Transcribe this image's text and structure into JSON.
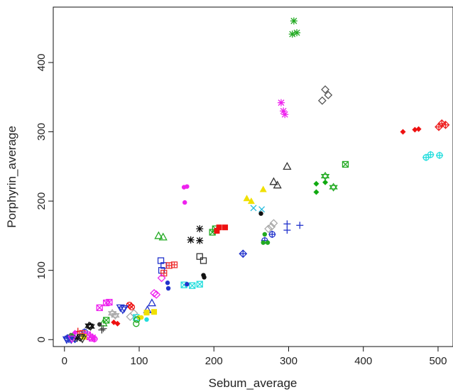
{
  "chart_data": {
    "type": "scatter",
    "title": "",
    "xlabel": "Sebum_average",
    "ylabel": "Porphyrin_average",
    "xlim": [
      -15,
      520
    ],
    "ylim": [
      -10,
      480
    ],
    "xticks": [
      0,
      100,
      200,
      300,
      400,
      500
    ],
    "yticks": [
      0,
      100,
      200,
      300,
      400
    ],
    "xtick_labels": [
      "0",
      "100",
      "200",
      "300",
      "400",
      "500"
    ],
    "ytick_labels": [
      "0",
      "100",
      "200",
      "300",
      "400"
    ],
    "grid": false,
    "legend": "none",
    "points": [
      {
        "x": 307,
        "y": 460,
        "color": "#22aa22",
        "marker": "asterisk"
      },
      {
        "x": 305,
        "y": 441,
        "color": "#22aa22",
        "marker": "asterisk"
      },
      {
        "x": 311,
        "y": 443,
        "color": "#22aa22",
        "marker": "asterisk"
      },
      {
        "x": 290,
        "y": 342,
        "color": "#ee22ee",
        "marker": "asterisk"
      },
      {
        "x": 293,
        "y": 330,
        "color": "#ee22ee",
        "marker": "asterisk"
      },
      {
        "x": 295,
        "y": 325,
        "color": "#ee22ee",
        "marker": "asterisk"
      },
      {
        "x": 349,
        "y": 361,
        "color": "#555555",
        "marker": "diamond-open"
      },
      {
        "x": 353,
        "y": 353,
        "color": "#555555",
        "marker": "diamond-open"
      },
      {
        "x": 345,
        "y": 345,
        "color": "#555555",
        "marker": "diamond-open"
      },
      {
        "x": 453,
        "y": 300,
        "color": "#ee1111",
        "marker": "diamond-filled"
      },
      {
        "x": 469,
        "y": 303,
        "color": "#ee1111",
        "marker": "diamond-filled"
      },
      {
        "x": 474,
        "y": 304,
        "color": "#ee1111",
        "marker": "diamond-filled"
      },
      {
        "x": 501,
        "y": 307,
        "color": "#ee2222",
        "marker": "diamond-plus"
      },
      {
        "x": 505,
        "y": 312,
        "color": "#ee2222",
        "marker": "diamond-plus"
      },
      {
        "x": 510,
        "y": 310,
        "color": "#ee2222",
        "marker": "diamond-plus"
      },
      {
        "x": 484,
        "y": 263,
        "color": "#22dddd",
        "marker": "circle-plus"
      },
      {
        "x": 490,
        "y": 267,
        "color": "#22dddd",
        "marker": "circle-plus"
      },
      {
        "x": 502,
        "y": 266,
        "color": "#22dddd",
        "marker": "circle-plus"
      },
      {
        "x": 298,
        "y": 250,
        "color": "#333333",
        "marker": "triangle-open"
      },
      {
        "x": 280,
        "y": 228,
        "color": "#333333",
        "marker": "triangle-open"
      },
      {
        "x": 285,
        "y": 223,
        "color": "#333333",
        "marker": "triangle-open"
      },
      {
        "x": 349,
        "y": 236,
        "color": "#22aa22",
        "marker": "star-david"
      },
      {
        "x": 360,
        "y": 220,
        "color": "#22aa22",
        "marker": "star-david"
      },
      {
        "x": 376,
        "y": 253,
        "color": "#22aa22",
        "marker": "square-x"
      },
      {
        "x": 337,
        "y": 225,
        "color": "#11aa11",
        "marker": "diamond-filled"
      },
      {
        "x": 337,
        "y": 213,
        "color": "#11aa11",
        "marker": "diamond-filled"
      },
      {
        "x": 349,
        "y": 227,
        "color": "#11aa11",
        "marker": "diamond-filled"
      },
      {
        "x": 160,
        "y": 220,
        "color": "#ee22ee",
        "marker": "circle-filled"
      },
      {
        "x": 164,
        "y": 221,
        "color": "#ee22ee",
        "marker": "circle-filled"
      },
      {
        "x": 161,
        "y": 198,
        "color": "#ee22ee",
        "marker": "circle-filled"
      },
      {
        "x": 244,
        "y": 204,
        "color": "#f0e000",
        "marker": "triangle-filled"
      },
      {
        "x": 250,
        "y": 200,
        "color": "#f0e000",
        "marker": "triangle-filled"
      },
      {
        "x": 266,
        "y": 217,
        "color": "#f0e000",
        "marker": "triangle-filled"
      },
      {
        "x": 253,
        "y": 190,
        "color": "#22bbdd",
        "marker": "x"
      },
      {
        "x": 264,
        "y": 188,
        "color": "#22bbdd",
        "marker": "x"
      },
      {
        "x": 263,
        "y": 182,
        "color": "#111111",
        "marker": "circle-filled"
      },
      {
        "x": 298,
        "y": 167,
        "color": "#2233cc",
        "marker": "plus"
      },
      {
        "x": 298,
        "y": 158,
        "color": "#2233cc",
        "marker": "plus"
      },
      {
        "x": 315,
        "y": 165,
        "color": "#2233cc",
        "marker": "plus"
      },
      {
        "x": 277,
        "y": 163,
        "color": "#aaaaaa",
        "marker": "diamond-open"
      },
      {
        "x": 280,
        "y": 168,
        "color": "#aaaaaa",
        "marker": "diamond-open"
      },
      {
        "x": 273,
        "y": 160,
        "color": "#aaaaaa",
        "marker": "diamond-open"
      },
      {
        "x": 278,
        "y": 152,
        "color": "#2233cc",
        "marker": "circle-plus"
      },
      {
        "x": 268,
        "y": 143,
        "color": "#2233cc",
        "marker": "circle-plus"
      },
      {
        "x": 239,
        "y": 124,
        "color": "#2233cc",
        "marker": "diamond-plus"
      },
      {
        "x": 268,
        "y": 152,
        "color": "#22aa22",
        "marker": "circle-filled"
      },
      {
        "x": 266,
        "y": 140,
        "color": "#22aa22",
        "marker": "circle-filled"
      },
      {
        "x": 272,
        "y": 140,
        "color": "#22aa22",
        "marker": "circle-filled"
      },
      {
        "x": 181,
        "y": 160,
        "color": "#111111",
        "marker": "asterisk"
      },
      {
        "x": 169,
        "y": 144,
        "color": "#111111",
        "marker": "asterisk"
      },
      {
        "x": 181,
        "y": 143,
        "color": "#111111",
        "marker": "asterisk"
      },
      {
        "x": 198,
        "y": 155,
        "color": "#22aa22",
        "marker": "square-x"
      },
      {
        "x": 202,
        "y": 160,
        "color": "#22aa22",
        "marker": "square-x"
      },
      {
        "x": 207,
        "y": 162,
        "color": "#ee1111",
        "marker": "square-filled"
      },
      {
        "x": 215,
        "y": 162,
        "color": "#ee1111",
        "marker": "square-filled"
      },
      {
        "x": 204,
        "y": 157,
        "color": "#ee1111",
        "marker": "square-filled"
      },
      {
        "x": 126,
        "y": 150,
        "color": "#22aa22",
        "marker": "triangle-open"
      },
      {
        "x": 132,
        "y": 148,
        "color": "#22aa22",
        "marker": "triangle-open"
      },
      {
        "x": 181,
        "y": 120,
        "color": "#333333",
        "marker": "square-open"
      },
      {
        "x": 186,
        "y": 114,
        "color": "#333333",
        "marker": "square-open"
      },
      {
        "x": 186,
        "y": 93,
        "color": "#111111",
        "marker": "circle-filled"
      },
      {
        "x": 187,
        "y": 90,
        "color": "#111111",
        "marker": "circle-filled"
      },
      {
        "x": 129,
        "y": 114,
        "color": "#2233cc",
        "marker": "square-open"
      },
      {
        "x": 133,
        "y": 107,
        "color": "#2233cc",
        "marker": "square-open"
      },
      {
        "x": 130,
        "y": 100,
        "color": "#2233cc",
        "marker": "square-open"
      },
      {
        "x": 140,
        "y": 107,
        "color": "#ee3333",
        "marker": "square-grid"
      },
      {
        "x": 147,
        "y": 108,
        "color": "#ee3333",
        "marker": "square-grid"
      },
      {
        "x": 133,
        "y": 96,
        "color": "#ee3333",
        "marker": "square-grid"
      },
      {
        "x": 130,
        "y": 89,
        "color": "#ee22ee",
        "marker": "diamond-open"
      },
      {
        "x": 138,
        "y": 82,
        "color": "#2233cc",
        "marker": "circle-filled"
      },
      {
        "x": 139,
        "y": 74,
        "color": "#2233cc",
        "marker": "circle-filled"
      },
      {
        "x": 160,
        "y": 79,
        "color": "#22dddd",
        "marker": "square-x"
      },
      {
        "x": 171,
        "y": 78,
        "color": "#22dddd",
        "marker": "square-x"
      },
      {
        "x": 181,
        "y": 80,
        "color": "#22dddd",
        "marker": "square-x"
      },
      {
        "x": 164,
        "y": 80,
        "color": "#2233cc",
        "marker": "circle-filled"
      },
      {
        "x": 120,
        "y": 67,
        "color": "#ee22ee",
        "marker": "diamond-open"
      },
      {
        "x": 123,
        "y": 65,
        "color": "#ee22ee",
        "marker": "diamond-open"
      },
      {
        "x": 117,
        "y": 53,
        "color": "#2233cc",
        "marker": "triangle-open"
      },
      {
        "x": 111,
        "y": 43,
        "color": "#2233cc",
        "marker": "triangle-open"
      },
      {
        "x": 120,
        "y": 40,
        "color": "#f0e000",
        "marker": "square-filled"
      },
      {
        "x": 110,
        "y": 39,
        "color": "#f0e000",
        "marker": "square-filled"
      },
      {
        "x": 60,
        "y": 54,
        "color": "#ee22ee",
        "marker": "square-x"
      },
      {
        "x": 56,
        "y": 53,
        "color": "#ee22ee",
        "marker": "square-x"
      },
      {
        "x": 47,
        "y": 46,
        "color": "#ee22ee",
        "marker": "square-x"
      },
      {
        "x": 87,
        "y": 50,
        "color": "#ee1111",
        "marker": "circle-x"
      },
      {
        "x": 90,
        "y": 47,
        "color": "#ee1111",
        "marker": "circle-x"
      },
      {
        "x": 75,
        "y": 46,
        "color": "#2233cc",
        "marker": "triangle-down"
      },
      {
        "x": 80,
        "y": 45,
        "color": "#2233cc",
        "marker": "triangle-down"
      },
      {
        "x": 78,
        "y": 43,
        "color": "#2233cc",
        "marker": "triangle-down"
      },
      {
        "x": 93,
        "y": 38,
        "color": "#aaaaaa",
        "marker": "diamond-open"
      },
      {
        "x": 88,
        "y": 33,
        "color": "#aaaaaa",
        "marker": "diamond-open"
      },
      {
        "x": 96,
        "y": 32,
        "color": "#22dddd",
        "marker": "square-x"
      },
      {
        "x": 103,
        "y": 32,
        "color": "#f0e000",
        "marker": "circle-filled"
      },
      {
        "x": 100,
        "y": 32,
        "color": "#f0e000",
        "marker": "circle-filled"
      },
      {
        "x": 110,
        "y": 29,
        "color": "#22dddd",
        "marker": "circle-filled"
      },
      {
        "x": 64,
        "y": 38,
        "color": "#aaaaaa",
        "marker": "star-david"
      },
      {
        "x": 68,
        "y": 35,
        "color": "#aaaaaa",
        "marker": "star-david"
      },
      {
        "x": 56,
        "y": 28,
        "color": "#22aa22",
        "marker": "square-x"
      },
      {
        "x": 66,
        "y": 25,
        "color": "#ee1111",
        "marker": "diamond-filled"
      },
      {
        "x": 71,
        "y": 23,
        "color": "#ee1111",
        "marker": "diamond-filled"
      },
      {
        "x": 52,
        "y": 24,
        "color": "#22aa22",
        "marker": "triangle-open"
      },
      {
        "x": 47,
        "y": 22,
        "color": "#333333",
        "marker": "circle-filled"
      },
      {
        "x": 96,
        "y": 23,
        "color": "#22aa22",
        "marker": "circle-open"
      },
      {
        "x": 97,
        "y": 29,
        "color": "#22aa22",
        "marker": "circle-open"
      },
      {
        "x": 33,
        "y": 20,
        "color": "#111111",
        "marker": "star-david"
      },
      {
        "x": 35,
        "y": 19,
        "color": "#111111",
        "marker": "star-david"
      },
      {
        "x": 52,
        "y": 16,
        "color": "#555555",
        "marker": "plus"
      },
      {
        "x": 50,
        "y": 14,
        "color": "#333333",
        "marker": "plus"
      },
      {
        "x": 18,
        "y": 12,
        "color": "#ee1111",
        "marker": "plus"
      },
      {
        "x": 27,
        "y": 11,
        "color": "#2233cc",
        "marker": "circle-plus"
      },
      {
        "x": 24,
        "y": 9,
        "color": "#ee3333",
        "marker": "square-grid"
      },
      {
        "x": 14,
        "y": 10,
        "color": "#ee22ee",
        "marker": "diamond-filled"
      },
      {
        "x": 10,
        "y": 6,
        "color": "#22aa22",
        "marker": "diamond-filled"
      },
      {
        "x": 8,
        "y": 4,
        "color": "#555555",
        "marker": "diamond-open"
      },
      {
        "x": 31,
        "y": 7,
        "color": "#ee22ee",
        "marker": "square-x"
      },
      {
        "x": 34,
        "y": 4,
        "color": "#ee22ee",
        "marker": "square-x"
      },
      {
        "x": 37,
        "y": 2,
        "color": "#ee22ee",
        "marker": "square-x"
      },
      {
        "x": 26,
        "y": 4,
        "color": "#f0e000",
        "marker": "square-filled"
      },
      {
        "x": 38,
        "y": 3,
        "color": "#ee22ee",
        "marker": "asterisk"
      },
      {
        "x": 22,
        "y": 3,
        "color": "#111111",
        "marker": "triangle-down"
      },
      {
        "x": 24,
        "y": 1,
        "color": "#333333",
        "marker": "triangle-down"
      },
      {
        "x": 14,
        "y": 1,
        "color": "#2233cc",
        "marker": "diamond-plus"
      },
      {
        "x": 4,
        "y": 2,
        "color": "#2233cc",
        "marker": "diamond-plus"
      },
      {
        "x": 6,
        "y": 1,
        "color": "#2233cc",
        "marker": "triangle-down"
      },
      {
        "x": 9,
        "y": 0,
        "color": "#2233cc",
        "marker": "triangle-down"
      },
      {
        "x": 3,
        "y": 0,
        "color": "#2233cc",
        "marker": "triangle-down"
      },
      {
        "x": 17,
        "y": 2,
        "color": "#111111",
        "marker": "asterisk"
      },
      {
        "x": 10,
        "y": 1,
        "color": "#ee22ee",
        "marker": "triangle-down"
      },
      {
        "x": 40,
        "y": 1,
        "color": "#ee22ee",
        "marker": "circle-plus"
      }
    ]
  }
}
